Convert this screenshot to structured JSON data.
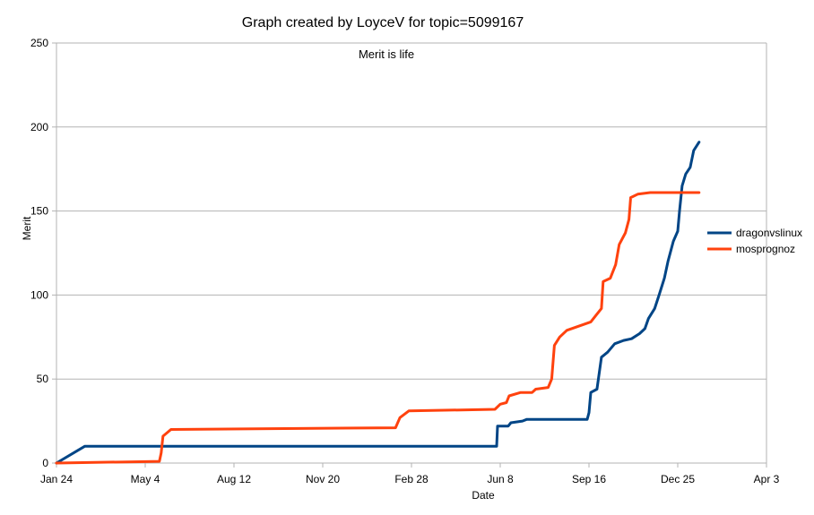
{
  "chart_data": {
    "type": "line",
    "title": "Graph created by LoyceV for topic=5099167",
    "subtitle": "Merit is life",
    "xlabel": "Date",
    "ylabel": "Merit",
    "ylim": [
      0,
      250
    ],
    "yticks": [
      0,
      50,
      100,
      150,
      200,
      250
    ],
    "xlim": [
      "2018-01-24",
      "2020-04-03"
    ],
    "xticks": [
      {
        "label": "Jan 24",
        "date": "2018-01-24"
      },
      {
        "label": "May 4",
        "date": "2018-05-04"
      },
      {
        "label": "Aug 12",
        "date": "2018-08-12"
      },
      {
        "label": "Nov 20",
        "date": "2018-11-20"
      },
      {
        "label": "Feb 28",
        "date": "2019-02-28"
      },
      {
        "label": "Jun 8",
        "date": "2019-06-08"
      },
      {
        "label": "Sep 16",
        "date": "2019-09-16"
      },
      {
        "label": "Dec 25",
        "date": "2019-12-25"
      },
      {
        "label": "Apr 3",
        "date": "2020-04-03"
      }
    ],
    "grid": true,
    "legend_position": "right",
    "series": [
      {
        "name": "dragonvslinux",
        "color": "#004586",
        "points": [
          [
            "2018-01-24",
            0
          ],
          [
            "2018-02-25",
            10
          ],
          [
            "2019-06-04",
            10
          ],
          [
            "2019-06-05",
            22
          ],
          [
            "2019-06-17",
            22
          ],
          [
            "2019-06-20",
            24
          ],
          [
            "2019-07-03",
            25
          ],
          [
            "2019-07-08",
            26
          ],
          [
            "2019-09-14",
            26
          ],
          [
            "2019-09-16",
            30
          ],
          [
            "2019-09-18",
            42
          ],
          [
            "2019-09-25",
            44
          ],
          [
            "2019-09-30",
            63
          ],
          [
            "2019-10-07",
            66
          ],
          [
            "2019-10-15",
            71
          ],
          [
            "2019-10-25",
            73
          ],
          [
            "2019-11-03",
            74
          ],
          [
            "2019-11-12",
            77
          ],
          [
            "2019-11-18",
            80
          ],
          [
            "2019-11-22",
            86
          ],
          [
            "2019-11-29",
            92
          ],
          [
            "2019-12-04",
            100
          ],
          [
            "2019-12-10",
            110
          ],
          [
            "2019-12-14",
            120
          ],
          [
            "2019-12-20",
            132
          ],
          [
            "2019-12-25",
            138
          ],
          [
            "2019-12-27",
            150
          ],
          [
            "2019-12-30",
            165
          ],
          [
            "2020-01-03",
            172
          ],
          [
            "2020-01-08",
            176
          ],
          [
            "2020-01-12",
            186
          ],
          [
            "2020-01-18",
            191
          ]
        ]
      },
      {
        "name": "mosprognoz",
        "color": "#ff420e",
        "points": [
          [
            "2018-01-24",
            0
          ],
          [
            "2018-05-20",
            1
          ],
          [
            "2018-05-22",
            6
          ],
          [
            "2018-05-24",
            16
          ],
          [
            "2018-06-02",
            20
          ],
          [
            "2019-02-10",
            21
          ],
          [
            "2019-02-15",
            27
          ],
          [
            "2019-02-25",
            31
          ],
          [
            "2019-06-02",
            32
          ],
          [
            "2019-06-08",
            35
          ],
          [
            "2019-06-15",
            36
          ],
          [
            "2019-06-18",
            40
          ],
          [
            "2019-07-01",
            42
          ],
          [
            "2019-07-14",
            42
          ],
          [
            "2019-07-18",
            44
          ],
          [
            "2019-08-01",
            45
          ],
          [
            "2019-08-05",
            50
          ],
          [
            "2019-08-08",
            70
          ],
          [
            "2019-08-14",
            75
          ],
          [
            "2019-08-22",
            79
          ],
          [
            "2019-09-18",
            84
          ],
          [
            "2019-09-24",
            88
          ],
          [
            "2019-09-30",
            92
          ],
          [
            "2019-10-02",
            108
          ],
          [
            "2019-10-10",
            110
          ],
          [
            "2019-10-16",
            118
          ],
          [
            "2019-10-20",
            130
          ],
          [
            "2019-10-27",
            137
          ],
          [
            "2019-10-31",
            145
          ],
          [
            "2019-11-02",
            158
          ],
          [
            "2019-11-10",
            160
          ],
          [
            "2019-11-24",
            161
          ],
          [
            "2020-01-18",
            161
          ]
        ]
      }
    ]
  }
}
